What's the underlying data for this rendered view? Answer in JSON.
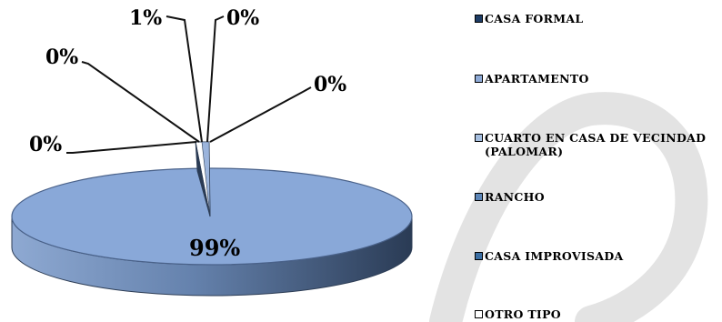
{
  "chart_data": {
    "type": "pie",
    "title": "",
    "categories": [
      "CASA FORMAL",
      "APARTAMENTO",
      "CUARTO EN CASA DE VECINDAD\n(PALOMAR)",
      "RANCHO",
      "CASA IMPROVISADA",
      "OTRO TIPO"
    ],
    "values": [
      99,
      0,
      0,
      0,
      0,
      1
    ],
    "data_labels": [
      "99%",
      "0%",
      "0%",
      "0%",
      "0%",
      "1%"
    ],
    "colors": [
      "#1f3d66",
      "#8eaad6",
      "#a6bfe0",
      "#5d86b8",
      "#3b6ea3",
      "#ffffff"
    ],
    "style": "3d",
    "legend_position": "right"
  },
  "legend": {
    "items": [
      {
        "label": "CASA FORMAL",
        "color": "#1f3d66"
      },
      {
        "label": "APARTAMENTO",
        "color": "#8eaad6"
      },
      {
        "label": "CUARTO EN CASA DE VECINDAD\n(PALOMAR)",
        "color": "#a6bfe0"
      },
      {
        "label": "RANCHO",
        "color": "#5d86b8"
      },
      {
        "label": "CASA IMPROVISADA",
        "color": "#3b6ea3"
      },
      {
        "label": "OTRO TIPO",
        "color": "#ffffff"
      }
    ]
  }
}
